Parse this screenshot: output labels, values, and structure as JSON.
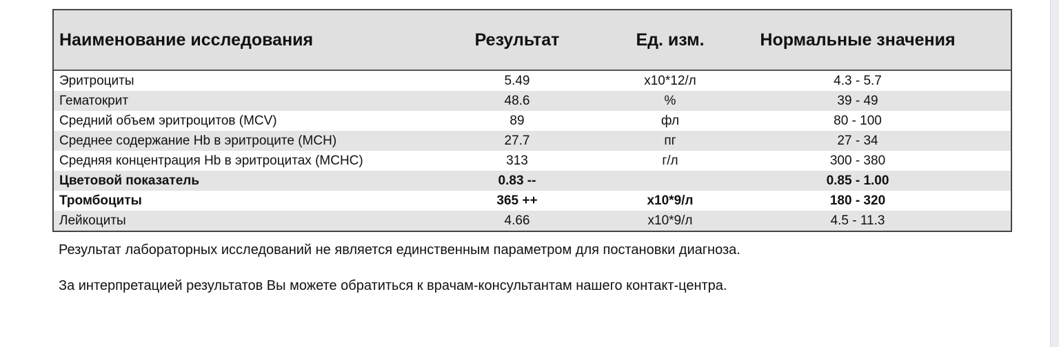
{
  "table": {
    "headers": [
      "Наименование исследования",
      "Результат",
      "Ед. изм.",
      "Нормальные значения"
    ],
    "rows": [
      {
        "name": "Эритроциты",
        "result": "5.49",
        "unit": "x10*12/л",
        "normal": "4.3 - 5.7",
        "bold": false
      },
      {
        "name": "Гематокрит",
        "result": "48.6",
        "unit": "%",
        "normal": "39 - 49",
        "bold": false
      },
      {
        "name": "Средний объем эритроцитов (MCV)",
        "result": "89",
        "unit": "фл",
        "normal": "80 - 100",
        "bold": false
      },
      {
        "name": "Среднее содержание Hb в эритроците (MCH)",
        "result": "27.7",
        "unit": "пг",
        "normal": "27 - 34",
        "bold": false
      },
      {
        "name": "Средняя концентрация Hb в эритроцитах (MCHC)",
        "result": "313",
        "unit": "г/л",
        "normal": "300 - 380",
        "bold": false
      },
      {
        "name": "Цветовой показатель",
        "result": "0.83 --",
        "unit": "",
        "normal": "0.85 - 1.00",
        "bold": true
      },
      {
        "name": "Тромбоциты",
        "result": "365 ++",
        "unit": "x10*9/л",
        "normal": "180 - 320",
        "bold": true
      },
      {
        "name": "Лейкоциты",
        "result": "4.66",
        "unit": "x10*9/л",
        "normal": "4.5 - 11.3",
        "bold": false
      }
    ]
  },
  "notes": [
    "Результат лабораторных исследований не является единственным параметром для постановки диагноза.",
    "За интерпретацией результатов Вы можете обратиться к врачам-консультантам нашего контакт-центра."
  ]
}
